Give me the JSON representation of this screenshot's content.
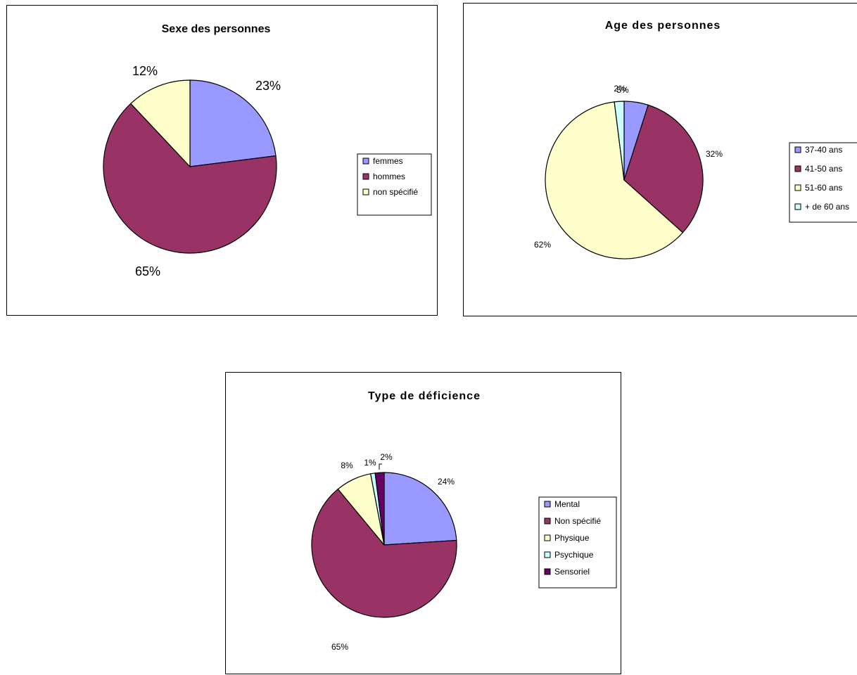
{
  "chart_data": [
    {
      "type": "pie",
      "title": "Sexe des personnes",
      "categories": [
        "femmes",
        "hommes",
        "non spécifié"
      ],
      "values": [
        23,
        65,
        12
      ],
      "labels": [
        "23%",
        "65%",
        "12%"
      ],
      "colors": [
        "#9999ff",
        "#993366",
        "#ffffcc"
      ],
      "legend": "right"
    },
    {
      "type": "pie",
      "title": "Age des personnes",
      "categories": [
        "37-40 ans",
        "41-50 ans",
        "51-60 ans",
        "+ de 60 ans"
      ],
      "values": [
        5,
        32,
        62,
        2
      ],
      "labels": [
        "5%",
        "32%",
        "62%",
        "2%"
      ],
      "colors": [
        "#9999ff",
        "#993366",
        "#ffffcc",
        "#ccffff"
      ],
      "legend": "right"
    },
    {
      "type": "pie",
      "title": "Type de déficience",
      "categories": [
        "Mental",
        "Non spécifié",
        "Physique",
        "Psychique",
        "Sensoriel"
      ],
      "values": [
        24,
        65,
        8,
        1,
        2
      ],
      "labels": [
        "24%",
        "65%",
        "8%",
        "1%",
        "2%"
      ],
      "colors": [
        "#9999ff",
        "#993366",
        "#ffffcc",
        "#ccffff",
        "#660066"
      ],
      "legend": "right"
    }
  ]
}
